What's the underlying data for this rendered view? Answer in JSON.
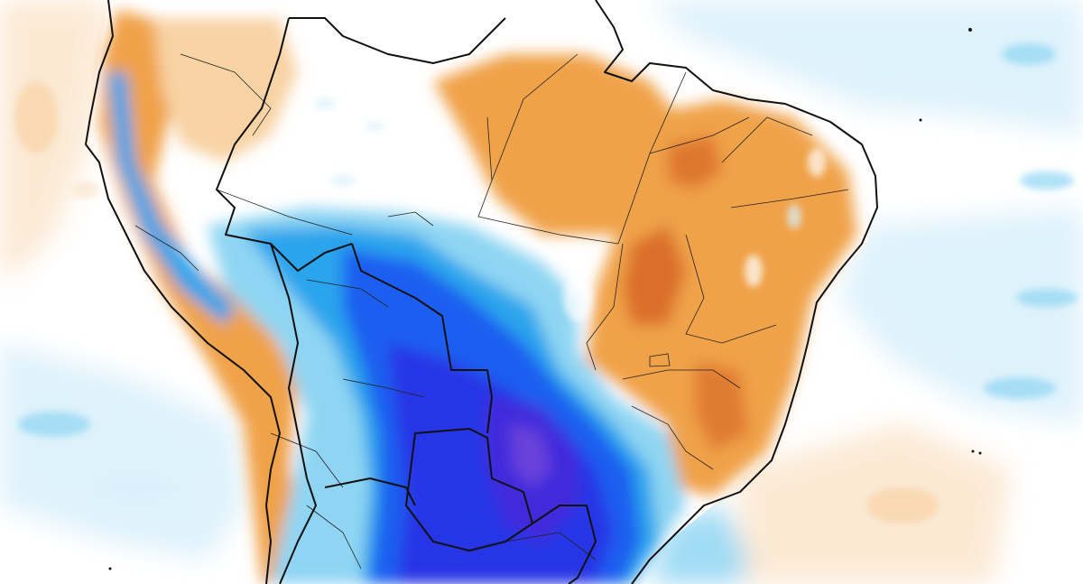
{
  "map": {
    "type": "temperature-anomaly-map",
    "region": "South America",
    "colors": {
      "ocean_background": "#ffffff",
      "strong_warm": "#c8430f",
      "warm": "#f0a24a",
      "light_warm": "#f8d3a4",
      "faint_warm": "#fbe6cd",
      "neutral": "#ffffff",
      "faint_cool": "#d9f0fb",
      "light_cool": "#8fd5f3",
      "cool": "#2aa4ec",
      "strong_cool": "#1f5ef0",
      "deep_cool": "#2636e6",
      "extreme_cool": "#4a2bd8",
      "extreme_cool_highlight": "#8a56d8",
      "border": "#111111",
      "state_border": "#222222"
    }
  }
}
